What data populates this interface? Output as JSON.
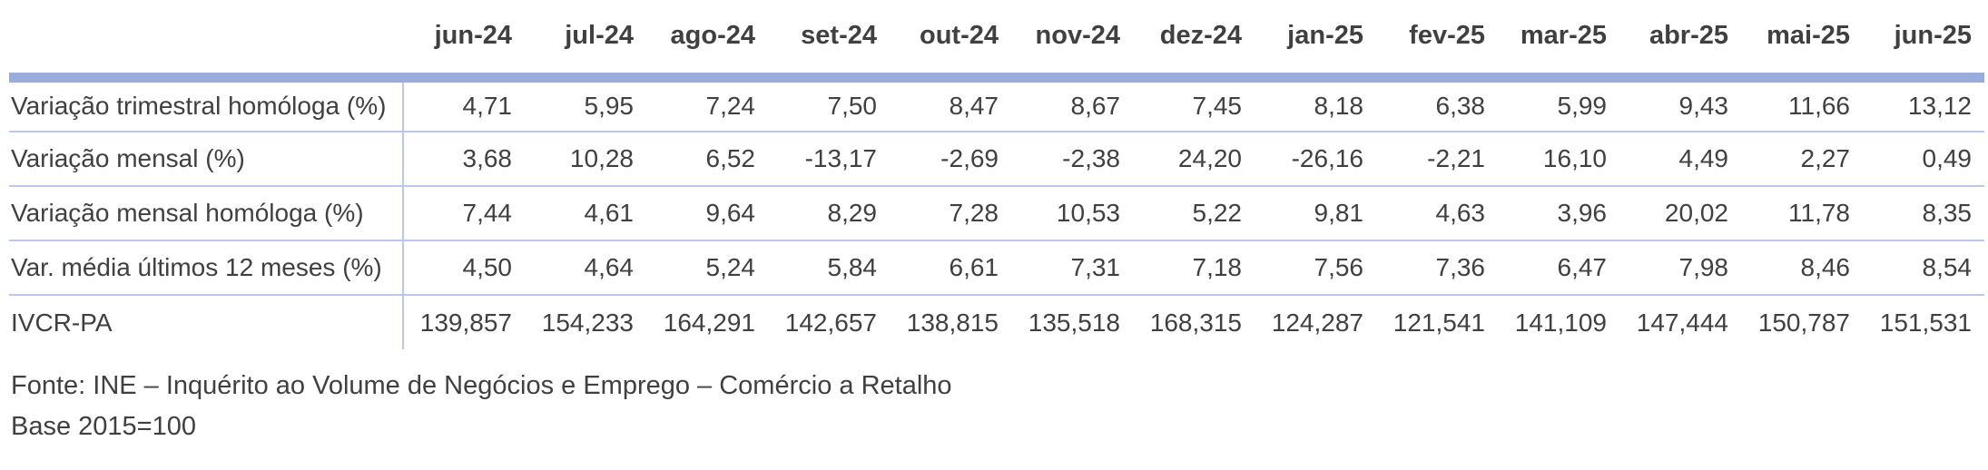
{
  "table": {
    "corner_label": "",
    "columns": [
      "jun-24",
      "jul-24",
      "ago-24",
      "set-24",
      "out-24",
      "nov-24",
      "dez-24",
      "jan-25",
      "fev-25",
      "mar-25",
      "abr-25",
      "mai-25",
      "jun-25"
    ],
    "rows": [
      {
        "label": "Variação trimestral homóloga (%)",
        "values": [
          "4,71",
          "5,95",
          "7,24",
          "7,50",
          "8,47",
          "8,67",
          "7,45",
          "8,18",
          "6,38",
          "5,99",
          "9,43",
          "11,66",
          "13,12"
        ]
      },
      {
        "label": "Variação mensal (%)",
        "values": [
          "3,68",
          "10,28",
          "6,52",
          "-13,17",
          "-2,69",
          "-2,38",
          "24,20",
          "-26,16",
          "-2,21",
          "16,10",
          "4,49",
          "2,27",
          "0,49"
        ]
      },
      {
        "label": "Variação mensal homóloga (%)",
        "values": [
          "7,44",
          "4,61",
          "9,64",
          "8,29",
          "7,28",
          "10,53",
          "5,22",
          "9,81",
          "4,63",
          "3,96",
          "20,02",
          "11,78",
          "8,35"
        ]
      },
      {
        "label": "Var. média últimos 12 meses (%)",
        "values": [
          "4,50",
          "4,64",
          "5,24",
          "5,84",
          "6,61",
          "7,31",
          "7,18",
          "7,56",
          "7,36",
          "6,47",
          "7,98",
          "8,46",
          "8,54"
        ]
      },
      {
        "label": "IVCR-PA",
        "values": [
          "139,857",
          "154,233",
          "164,291",
          "142,657",
          "138,815",
          "135,518",
          "168,315",
          "124,287",
          "121,541",
          "141,109",
          "147,444",
          "150,787",
          "151,531"
        ]
      }
    ]
  },
  "footer": {
    "source_line": "Fonte: INE – Inquérito ao Volume de Negócios e Emprego – Comércio a Retalho",
    "base_line": "Base 2015=100"
  },
  "colors": {
    "header_band": "#9AABDC",
    "grid_line": "#BDC7E9",
    "text": "#404040"
  }
}
